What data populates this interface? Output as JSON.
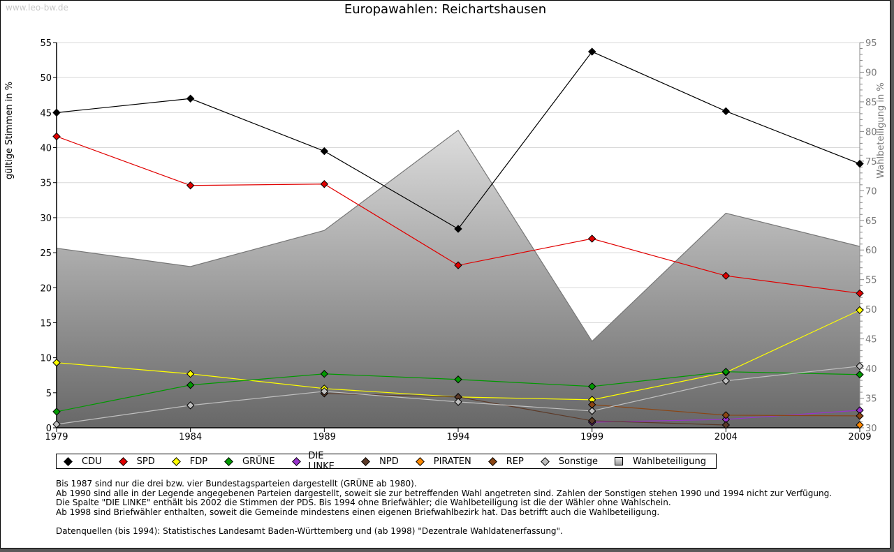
{
  "watermark": "www.leo-bw.de",
  "chart_data": {
    "type": "line",
    "title": "Europawahlen: Reichartshausen",
    "ylabel": "gültige Stimmen in %",
    "y2label": "Wahlbeteiligung in %",
    "x": [
      1979,
      1984,
      1989,
      1994,
      1999,
      2004,
      2009
    ],
    "xticks": [
      "1979",
      "1984",
      "1989",
      "1994",
      "1999",
      "2004",
      "2009"
    ],
    "ylim": [
      0,
      55
    ],
    "yticks": [
      "0",
      "5",
      "10",
      "15",
      "20",
      "25",
      "30",
      "35",
      "40",
      "45",
      "50",
      "55"
    ],
    "y2lim": [
      30,
      95
    ],
    "y2ticks": [
      "30",
      "35",
      "40",
      "45",
      "50",
      "55",
      "60",
      "65",
      "70",
      "75",
      "80",
      "85",
      "90",
      "95"
    ],
    "grid": true,
    "series": [
      {
        "name": "CDU",
        "color": "#000000",
        "values": [
          45.0,
          47.0,
          39.5,
          28.4,
          53.7,
          45.2,
          37.7
        ]
      },
      {
        "name": "SPD",
        "color": "#e00000",
        "values": [
          41.6,
          34.6,
          34.8,
          23.2,
          27.0,
          21.7,
          19.2
        ]
      },
      {
        "name": "FDP",
        "color": "#ffff00",
        "values": [
          9.3,
          7.7,
          5.6,
          4.4,
          4.0,
          7.9,
          16.8
        ]
      },
      {
        "name": "GRÜNE",
        "color": "#009900",
        "values": [
          2.3,
          6.1,
          7.7,
          6.9,
          5.9,
          8.0,
          7.6
        ]
      },
      {
        "name": "DIE LINKE",
        "color": "#9933cc",
        "values": [
          null,
          null,
          null,
          null,
          0.8,
          1.2,
          2.5
        ]
      },
      {
        "name": "NPD",
        "color": "#5c3a28",
        "values": [
          null,
          null,
          4.9,
          4.4,
          1.0,
          0.4,
          null
        ]
      },
      {
        "name": "PIRATEN",
        "color": "#ff8800",
        "values": [
          null,
          null,
          null,
          null,
          null,
          null,
          0.4
        ]
      },
      {
        "name": "REP",
        "color": "#8b4513",
        "values": [
          null,
          null,
          null,
          null,
          3.3,
          1.8,
          1.7
        ]
      },
      {
        "name": "Sonstige",
        "color": "#c0c0c0",
        "values": [
          0.5,
          3.2,
          5.2,
          3.7,
          2.4,
          6.7,
          8.8
        ]
      }
    ],
    "turnout": {
      "name": "Wahlbeteiligung",
      "axis": "right",
      "values": [
        60.3,
        57.2,
        63.3,
        80.2,
        44.6,
        66.2,
        60.6
      ]
    },
    "legend_position": "bottom"
  },
  "notes": [
    "Bis 1987 sind nur die drei bzw. vier Bundestagsparteien dargestellt (GRÜNE ab 1980).",
    "Ab 1990 sind alle in der Legende angegebenen Parteien dargestellt, soweit sie zur betreffenden Wahl angetreten sind. Zahlen der Sonstigen stehen 1990 und 1994 nicht zur Verfügung.",
    "Die Spalte \"DIE LINKE\" enthält bis 2002 die Stimmen der PDS. Bis 1994 ohne Briefwähler; die Wahlbeteiligung ist die der Wähler ohne Wahlschein.",
    "Ab 1998 sind Briefwähler enthalten, soweit die Gemeinde mindestens einen eigenen Briefwahlbezirk hat. Das betrifft auch die Wahlbeteiligung.",
    "Datenquellen (bis 1994): Statistisches Landesamt Baden-Württemberg und (ab 1998) \"Dezentrale Wahldatenerfassung\"."
  ]
}
